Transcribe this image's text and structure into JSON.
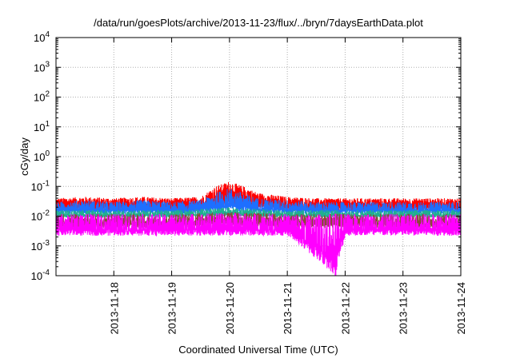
{
  "chart_data": {
    "type": "line",
    "title": "/data/run/goesPlots/archive/2013-11-23/flux/../bryn/7daysEarthData.plot",
    "xlabel": "Coordinated Universal Time (UTC)",
    "ylabel": "cGy/day",
    "yscale": "log",
    "xscale": "time",
    "xlim": [
      "2013-11-17T00:00",
      "2013-11-24T00:00"
    ],
    "ylim": [
      0.0001,
      10000
    ],
    "grid": true,
    "legend": "none",
    "x_ticks": [
      "2013-11-18",
      "2013-11-19",
      "2013-11-20",
      "2013-11-21",
      "2013-11-22",
      "2013-11-23",
      "2013-11-24"
    ],
    "y_ticks": [
      {
        "value": 0.0001,
        "base": "10",
        "exp": "-4"
      },
      {
        "value": 0.001,
        "base": "10",
        "exp": "-3"
      },
      {
        "value": 0.01,
        "base": "10",
        "exp": "-2"
      },
      {
        "value": 0.1,
        "base": "10",
        "exp": "-1"
      },
      {
        "value": 1,
        "base": "10",
        "exp": "0"
      },
      {
        "value": 10,
        "base": "10",
        "exp": "1"
      },
      {
        "value": 100,
        "base": "10",
        "exp": "2"
      },
      {
        "value": 1000,
        "base": "10",
        "exp": "3"
      },
      {
        "value": 10000,
        "base": "10",
        "exp": "4"
      }
    ],
    "series": [
      {
        "color": "#ff0000",
        "x": [
          "2013-11-17T00:00",
          "2013-11-17T12:00",
          "2013-11-18T00:00",
          "2013-11-18T12:00",
          "2013-11-19T00:00",
          "2013-11-19T12:00",
          "2013-11-19T18:00",
          "2013-11-20T00:00",
          "2013-11-20T06:00",
          "2013-11-20T12:00",
          "2013-11-21T00:00",
          "2013-11-21T12:00",
          "2013-11-22T00:00",
          "2013-11-22T12:00",
          "2013-11-23T00:00",
          "2013-11-23T12:00",
          "2013-11-24T00:00"
        ],
        "y_high": [
          0.04,
          0.045,
          0.04,
          0.045,
          0.04,
          0.045,
          0.1,
          0.15,
          0.1,
          0.06,
          0.045,
          0.04,
          0.04,
          0.04,
          0.04,
          0.04,
          0.04
        ],
        "y_low": [
          0.015,
          0.015,
          0.015,
          0.015,
          0.015,
          0.015,
          0.02,
          0.025,
          0.02,
          0.018,
          0.015,
          0.015,
          0.015,
          0.015,
          0.015,
          0.015,
          0.015
        ]
      },
      {
        "color": "#1e6fff",
        "x": [
          "2013-11-17T00:00",
          "2013-11-17T12:00",
          "2013-11-18T00:00",
          "2013-11-18T12:00",
          "2013-11-19T00:00",
          "2013-11-19T12:00",
          "2013-11-19T18:00",
          "2013-11-20T00:00",
          "2013-11-20T06:00",
          "2013-11-20T12:00",
          "2013-11-21T00:00",
          "2013-11-21T12:00",
          "2013-11-22T00:00",
          "2013-11-22T12:00",
          "2013-11-23T00:00",
          "2013-11-23T12:00",
          "2013-11-24T00:00"
        ],
        "y_high": [
          0.03,
          0.035,
          0.03,
          0.035,
          0.03,
          0.035,
          0.06,
          0.09,
          0.06,
          0.04,
          0.035,
          0.03,
          0.03,
          0.03,
          0.03,
          0.03,
          0.03
        ],
        "y_low": [
          0.012,
          0.012,
          0.012,
          0.012,
          0.012,
          0.012,
          0.014,
          0.015,
          0.014,
          0.013,
          0.012,
          0.012,
          0.012,
          0.012,
          0.012,
          0.012,
          0.012
        ]
      },
      {
        "color": "#20b090",
        "x": [
          "2013-11-17T00:00",
          "2013-11-18T00:00",
          "2013-11-19T00:00",
          "2013-11-20T00:00",
          "2013-11-21T00:00",
          "2013-11-22T00:00",
          "2013-11-23T00:00",
          "2013-11-24T00:00"
        ],
        "y_high": [
          0.016,
          0.016,
          0.016,
          0.02,
          0.016,
          0.016,
          0.016,
          0.016
        ],
        "y_low": [
          0.009,
          0.009,
          0.009,
          0.01,
          0.009,
          0.009,
          0.009,
          0.009
        ]
      },
      {
        "color": "#8b4a3a",
        "x": [
          "2013-11-17T00:00",
          "2013-11-18T00:00",
          "2013-11-19T00:00",
          "2013-11-20T00:00",
          "2013-11-21T00:00",
          "2013-11-22T00:00",
          "2013-11-23T00:00",
          "2013-11-24T00:00"
        ],
        "y_high": [
          0.012,
          0.012,
          0.012,
          0.014,
          0.012,
          0.012,
          0.012,
          0.012
        ],
        "y_low": [
          0.004,
          0.004,
          0.004,
          0.005,
          0.004,
          0.004,
          0.004,
          0.004
        ]
      },
      {
        "color": "#ff00ff",
        "x": [
          "2013-11-17T00:00",
          "2013-11-18T00:00",
          "2013-11-19T00:00",
          "2013-11-20T00:00",
          "2013-11-21T00:00",
          "2013-11-21T20:00",
          "2013-11-22T00:00",
          "2013-11-23T00:00",
          "2013-11-24T00:00"
        ],
        "y_high": [
          0.012,
          0.012,
          0.012,
          0.013,
          0.012,
          0.012,
          0.012,
          0.012,
          0.012
        ],
        "y_low": [
          0.0022,
          0.0022,
          0.0022,
          0.0022,
          0.0022,
          0.0001,
          0.0022,
          0.0022,
          0.0022
        ]
      }
    ]
  }
}
